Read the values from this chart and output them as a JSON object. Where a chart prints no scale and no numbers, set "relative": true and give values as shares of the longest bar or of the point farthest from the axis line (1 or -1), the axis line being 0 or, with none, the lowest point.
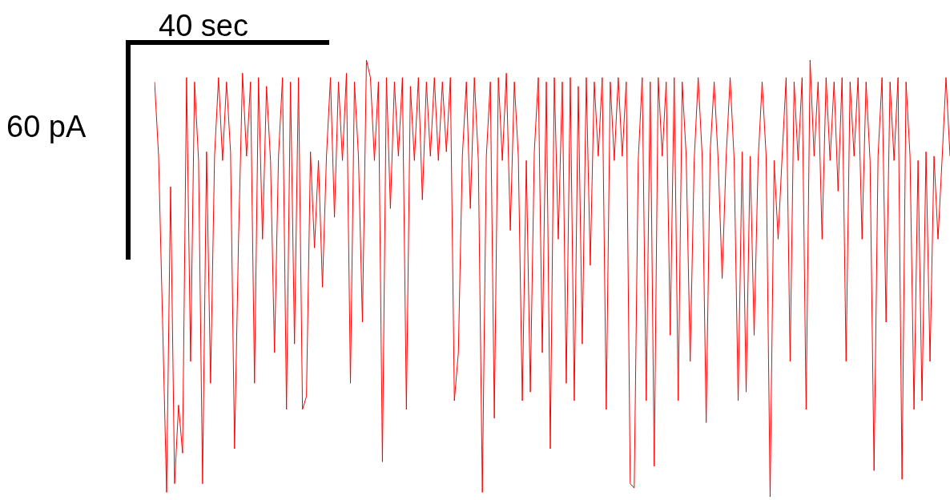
{
  "chart_data": {
    "type": "line",
    "relative": true,
    "color": "#ff0000",
    "annotations": [
      "40 sec",
      "60 pA"
    ],
    "categories": [
      null,
      null,
      null,
      null,
      null,
      null,
      null,
      null,
      null,
      null,
      null,
      null,
      null,
      null,
      null,
      null,
      null,
      null,
      null,
      null,
      null,
      null,
      null,
      null,
      null,
      null,
      null,
      null,
      null,
      null,
      null,
      null,
      null,
      null,
      null,
      null,
      null,
      null,
      null,
      null,
      null,
      null,
      null,
      null,
      null,
      null,
      null,
      null,
      null,
      null,
      null,
      null,
      null,
      null,
      null,
      null,
      null,
      null,
      null,
      null,
      null,
      null,
      null,
      null,
      null,
      null,
      null,
      null,
      null,
      null,
      null,
      null,
      null,
      null,
      null,
      null,
      null,
      null,
      null,
      null,
      null,
      null,
      null,
      null,
      null,
      null,
      null,
      null,
      null,
      null,
      null,
      null,
      null,
      null,
      null,
      null,
      null,
      null,
      null,
      null,
      null,
      null,
      null,
      null,
      null,
      null,
      null,
      null,
      null,
      null,
      null,
      null,
      null,
      null,
      null,
      null,
      null,
      null,
      null,
      null,
      null,
      null,
      null,
      null,
      null,
      null,
      null,
      null,
      null,
      null,
      null,
      null,
      null,
      null,
      null,
      null,
      null,
      null,
      null,
      null,
      null,
      null,
      null,
      null,
      null,
      null,
      null,
      null,
      null,
      null,
      null,
      null,
      null,
      null,
      null,
      null,
      null,
      null,
      null,
      null,
      null,
      null,
      null,
      null,
      null,
      null,
      null,
      null,
      null,
      null,
      null,
      null,
      null,
      null,
      null,
      null,
      null,
      null,
      null,
      null,
      null,
      null,
      null,
      null,
      null,
      null,
      null,
      null,
      null,
      null,
      null,
      null,
      null,
      null,
      null,
      null,
      null,
      null,
      null,
      null
    ],
    "values": [
      0.95,
      0.78,
      0.4,
      0.01,
      0.71,
      0.03,
      0.21,
      0.1,
      0.96,
      0.31,
      0.95,
      0.77,
      0.03,
      0.79,
      0.26,
      0.78,
      0.96,
      0.77,
      0.95,
      0.79,
      0.11,
      0.59,
      0.97,
      0.78,
      0.95,
      0.26,
      0.96,
      0.59,
      0.94,
      0.77,
      0.33,
      0.78,
      0.96,
      0.2,
      0.95,
      0.35,
      0.96,
      0.2,
      0.23,
      0.79,
      0.57,
      0.77,
      0.48,
      0.78,
      0.96,
      0.64,
      0.95,
      0.77,
      0.97,
      0.26,
      0.95,
      0.78,
      0.4,
      1.0,
      0.96,
      0.77,
      0.95,
      0.08,
      0.96,
      0.66,
      0.95,
      0.78,
      0.96,
      0.2,
      0.94,
      0.77,
      0.96,
      0.68,
      0.95,
      0.78,
      0.96,
      0.77,
      0.95,
      0.79,
      0.96,
      0.22,
      0.33,
      0.78,
      0.95,
      0.66,
      0.96,
      0.77,
      0.01,
      0.78,
      0.95,
      0.18,
      0.96,
      0.77,
      0.97,
      0.61,
      0.95,
      0.78,
      0.22,
      0.77,
      0.24,
      0.79,
      0.96,
      0.33,
      0.95,
      0.11,
      0.96,
      0.59,
      0.95,
      0.26,
      0.96,
      0.22,
      0.94,
      0.35,
      0.96,
      0.53,
      0.95,
      0.78,
      0.96,
      0.2,
      0.95,
      0.77,
      0.96,
      0.78,
      0.95,
      0.03,
      0.02,
      0.77,
      0.96,
      0.22,
      0.95,
      0.07,
      0.96,
      0.78,
      0.95,
      0.37,
      0.96,
      0.22,
      0.95,
      0.78,
      0.31,
      0.77,
      0.96,
      0.78,
      0.17,
      0.79,
      0.95,
      0.77,
      0.5,
      0.78,
      0.96,
      0.77,
      0.22,
      0.79,
      0.24,
      0.78,
      0.37,
      0.77,
      0.95,
      0.78,
      0.0,
      0.77,
      0.59,
      0.78,
      0.96,
      0.31,
      0.95,
      0.77,
      0.96,
      0.2,
      1.0,
      0.78,
      0.95,
      0.59,
      0.96,
      0.77,
      0.95,
      0.7,
      0.96,
      0.31,
      0.95,
      0.78,
      0.96,
      0.59,
      0.95,
      0.77,
      0.06,
      0.78,
      0.96,
      0.4,
      0.95,
      0.77,
      0.96,
      0.04,
      0.95,
      0.78,
      0.2,
      0.77,
      0.22,
      0.79,
      0.31,
      0.78,
      0.59,
      0.77,
      0.96,
      0.78
    ]
  }
}
